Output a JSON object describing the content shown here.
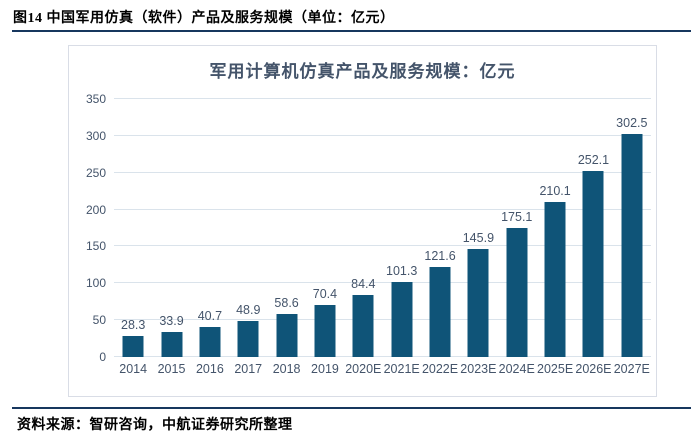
{
  "header": {
    "title": "图14 中国军用仿真（软件）产品及服务规模（单位：亿元）"
  },
  "footer": {
    "source": "资料来源：智研咨询，中航证券研究所整理"
  },
  "colors": {
    "bar": "#0f5478",
    "accent_line": "#17375e",
    "grid": "#dae3eb",
    "axis_text": "#44546a",
    "panel_border": "#d9dde6"
  },
  "chart_data": {
    "type": "bar",
    "title": "军用计算机仿真产品及服务规模：亿元",
    "categories": [
      "2014",
      "2015",
      "2016",
      "2017",
      "2018",
      "2019",
      "2020E",
      "2021E",
      "2022E",
      "2023E",
      "2024E",
      "2025E",
      "2026E",
      "2027E"
    ],
    "values": [
      28.3,
      33.9,
      40.7,
      48.9,
      58.6,
      70.4,
      84.4,
      101.3,
      121.6,
      145.9,
      175.1,
      210.1,
      252.1,
      302.5
    ],
    "xlabel": "",
    "ylabel": "",
    "ylim": [
      0,
      350
    ],
    "yticks": [
      0,
      50,
      100,
      150,
      200,
      250,
      300,
      350
    ],
    "grid": true,
    "legend": false,
    "data_labels": true
  }
}
